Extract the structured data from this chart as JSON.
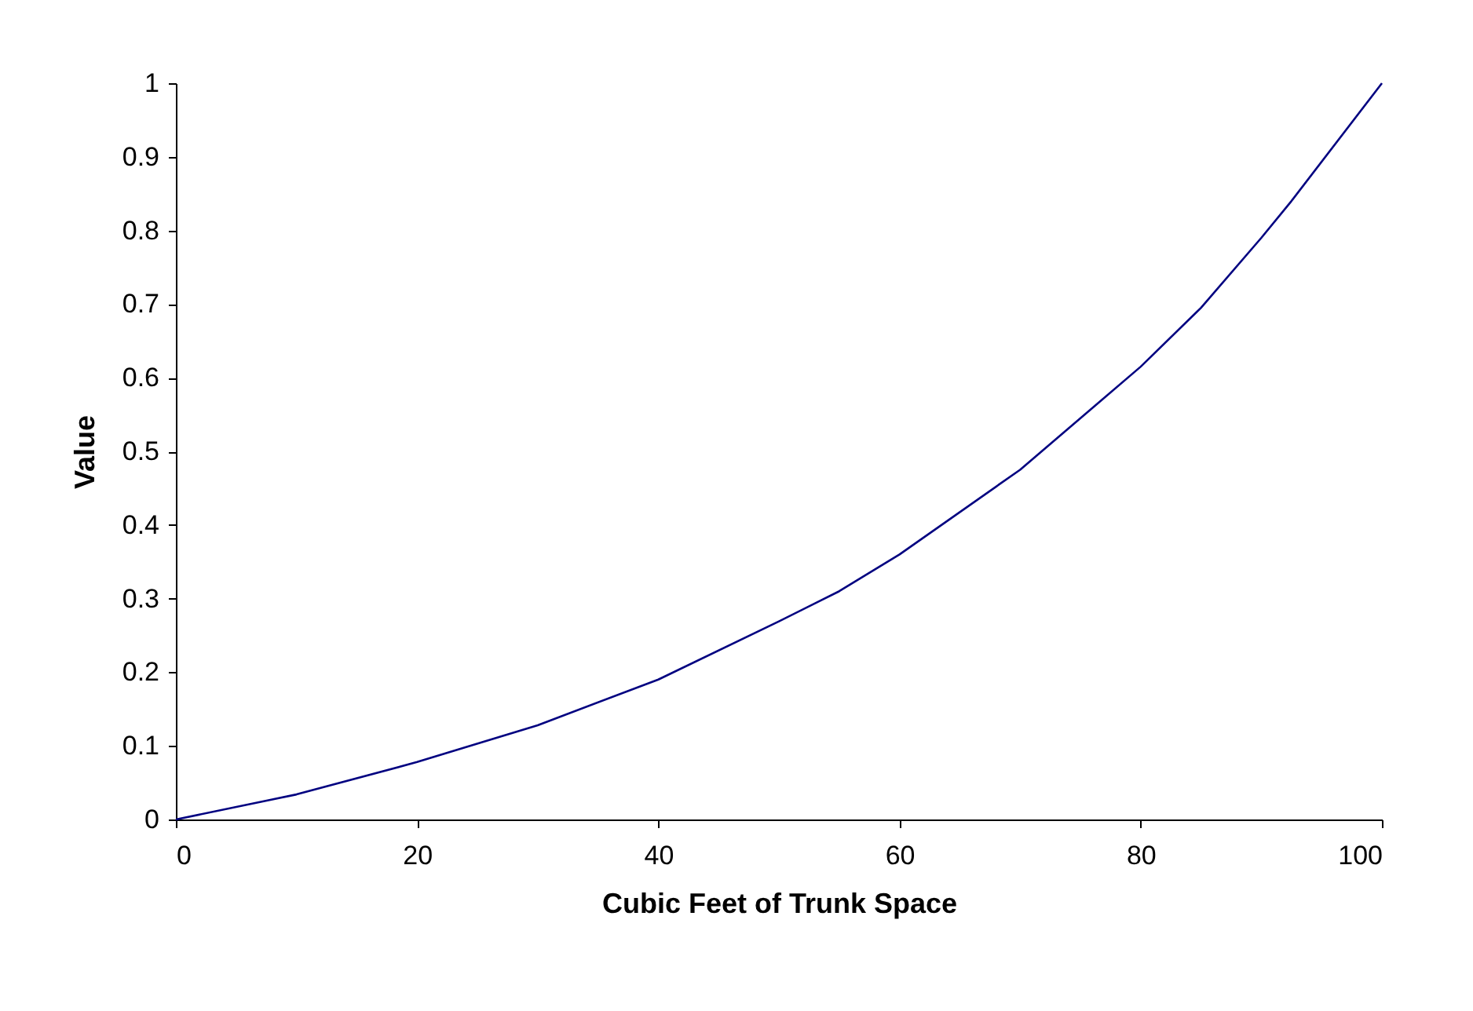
{
  "chart_data": {
    "type": "line",
    "xlabel": "Cubic Feet of Trunk Space",
    "ylabel": "Value",
    "x": [
      0,
      10,
      20,
      30,
      40,
      50,
      55,
      60,
      70,
      80,
      85,
      90,
      92.5,
      100
    ],
    "series": [
      {
        "color": "#000080",
        "values": [
          0,
          0.034,
          0.078,
          0.128,
          0.19,
          0.269,
          0.31,
          0.36,
          0.475,
          0.615,
          0.695,
          0.79,
          0.84,
          1.0
        ]
      }
    ],
    "xlim": [
      0,
      100
    ],
    "xticks": [
      0,
      20,
      40,
      60,
      80,
      100
    ],
    "ylim": [
      0,
      1
    ],
    "yticks": [
      0,
      0.1,
      0.2,
      0.3,
      0.4,
      0.5,
      0.6,
      0.7,
      0.8,
      0.9,
      1
    ],
    "grid": false,
    "marker": "none",
    "line_style": "solid"
  }
}
